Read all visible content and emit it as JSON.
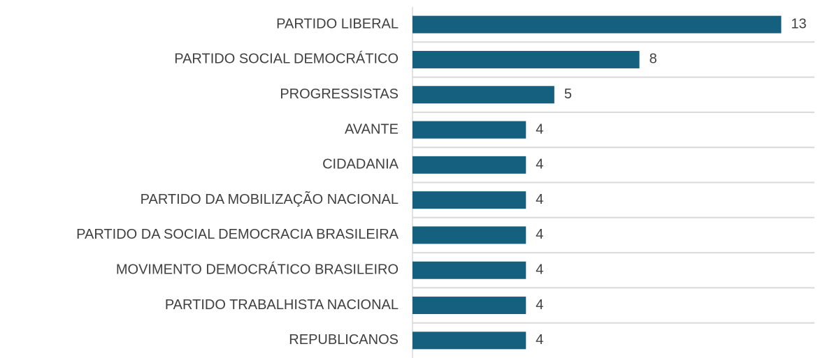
{
  "chart_data": {
    "type": "barh",
    "categories": [
      "PARTIDO LIBERAL",
      "PARTIDO SOCIAL DEMOCRÁTICO",
      "PROGRESSISTAS",
      "AVANTE",
      "CIDADANIA",
      "PARTIDO DA MOBILIZAÇÃO NACIONAL",
      "PARTIDO DA SOCIAL DEMOCRACIA BRASILEIRA",
      "MOVIMENTO DEMOCRÁTICO BRASILEIRO",
      "PARTIDO TRABALHISTA NACIONAL",
      "REPUBLICANOS"
    ],
    "values": [
      13,
      8,
      5,
      4,
      4,
      4,
      4,
      4,
      4,
      4
    ],
    "color": "#16607f",
    "xlim": [
      0,
      14
    ]
  }
}
